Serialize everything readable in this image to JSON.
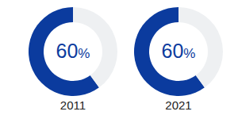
{
  "chart_data": [
    {
      "type": "donut",
      "title": "2011",
      "values": [
        60,
        40
      ],
      "value_labels": [
        "60%",
        null
      ],
      "data_labels": true,
      "colors": [
        "#0b3b9e",
        "#eef0f2"
      ]
    },
    {
      "type": "donut",
      "title": "2021",
      "values": [
        60,
        40
      ],
      "value_labels": [
        "60%",
        null
      ],
      "data_labels": true,
      "colors": [
        "#0b3b9e",
        "#eef0f2"
      ]
    }
  ]
}
